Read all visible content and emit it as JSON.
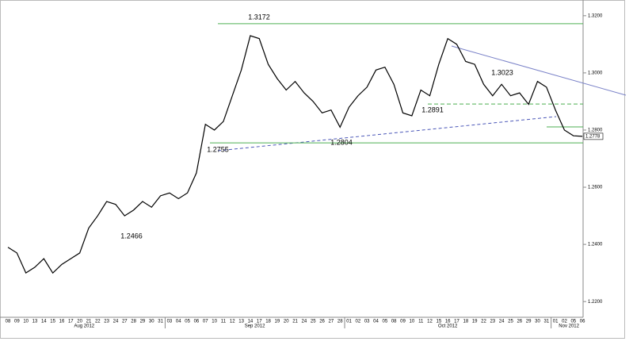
{
  "chart_data": {
    "type": "line",
    "color": "#000000",
    "categories": [
      "08",
      "09",
      "10",
      "13",
      "14",
      "15",
      "16",
      "17",
      "20",
      "21",
      "22",
      "23",
      "24",
      "27",
      "28",
      "29",
      "30",
      "31",
      "03",
      "04",
      "05",
      "06",
      "07",
      "10",
      "11",
      "12",
      "13",
      "14",
      "17",
      "18",
      "19",
      "20",
      "21",
      "24",
      "25",
      "26",
      "27",
      "28",
      "01",
      "02",
      "03",
      "04",
      "05",
      "08",
      "09",
      "10",
      "11",
      "12",
      "15",
      "16",
      "17",
      "18",
      "19",
      "22",
      "23",
      "24",
      "25",
      "26",
      "29",
      "30",
      "31",
      "01",
      "02",
      "05",
      "06"
    ],
    "values": [
      1.239,
      1.237,
      1.23,
      1.232,
      1.235,
      1.23,
      1.233,
      1.235,
      1.237,
      1.2457,
      1.25,
      1.255,
      1.254,
      1.25,
      1.252,
      1.255,
      1.253,
      1.257,
      1.258,
      1.256,
      1.258,
      1.265,
      1.282,
      1.28,
      1.283,
      1.292,
      1.301,
      1.313,
      1.312,
      1.303,
      1.298,
      1.294,
      1.297,
      1.293,
      1.29,
      1.286,
      1.287,
      1.281,
      1.288,
      1.292,
      1.295,
      1.301,
      1.302,
      1.296,
      1.286,
      1.285,
      1.294,
      1.292,
      1.303,
      1.312,
      1.31,
      1.304,
      1.303,
      1.296,
      1.292,
      1.296,
      1.292,
      1.293,
      1.289,
      1.297,
      1.295,
      1.287,
      1.28,
      1.278,
      1.2778
    ],
    "months": [
      "Aug 2012",
      "Sep 2012",
      "Oct 2012",
      "Nov 2012"
    ],
    "ylim": [
      1.2145,
      1.3255
    ],
    "yticks": [
      {
        "value": 1.22,
        "label": "1.2200"
      },
      {
        "value": 1.24,
        "label": "1.2400"
      },
      {
        "value": 1.26,
        "label": "1.2600"
      },
      {
        "value": 1.28,
        "label": "1.2800"
      },
      {
        "value": 1.3,
        "label": "1.3000"
      },
      {
        "value": 1.32,
        "label": "1.3200"
      }
    ],
    "last_price": {
      "value": 1.2778,
      "label": "1.2778"
    },
    "levels": [
      {
        "value": 1.3172,
        "label": "1.3172"
      },
      {
        "value": 1.2755,
        "label": "1.2755"
      },
      {
        "value": 1.2891,
        "label": "1.2891"
      }
    ],
    "annotations": [
      "1.3023",
      "1.2804",
      "1.2466"
    ]
  }
}
